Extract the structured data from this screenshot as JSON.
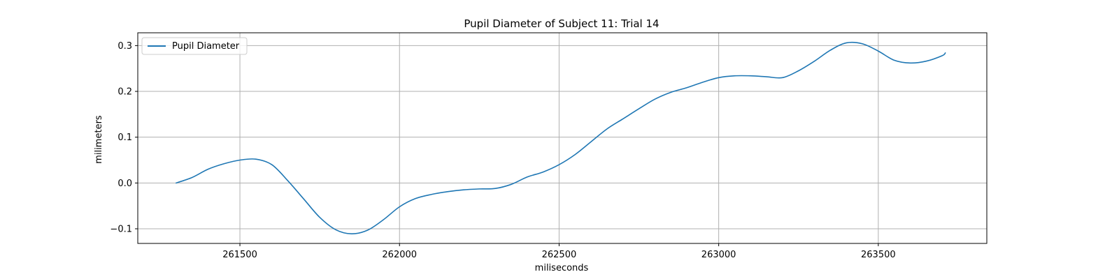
{
  "chart_data": {
    "type": "line",
    "title": "Pupil Diameter of Subject 11: Trial 14",
    "xlabel": "miliseconds",
    "ylabel": "milimeters",
    "xlim": [
      261180,
      263840
    ],
    "ylim": [
      -0.132,
      0.328
    ],
    "xticks": [
      261500,
      262000,
      262500,
      263000,
      263500
    ],
    "yticks": [
      -0.1,
      0.0,
      0.1,
      0.2,
      0.3
    ],
    "ytick_labels": [
      "−0.1",
      "0.0",
      "0.1",
      "0.2",
      "0.3"
    ],
    "grid": true,
    "legend": {
      "placement": "upper-left",
      "entries": [
        "Pupil Diameter"
      ]
    },
    "colors": {
      "line": "#1f77b4",
      "grid": "#b0b0b0"
    },
    "series": [
      {
        "name": "Pupil Diameter",
        "x": [
          261300,
          261350,
          261400,
          261450,
          261500,
          261550,
          261600,
          261650,
          261700,
          261750,
          261800,
          261850,
          261900,
          261950,
          262000,
          262050,
          262100,
          262150,
          262200,
          262250,
          262300,
          262350,
          262400,
          262450,
          262500,
          262550,
          262600,
          262650,
          262700,
          262750,
          262800,
          262850,
          262900,
          262950,
          263000,
          263050,
          263100,
          263150,
          263200,
          263250,
          263300,
          263350,
          263400,
          263450,
          263500,
          263550,
          263600,
          263650,
          263700,
          263710
        ],
        "y": [
          0.0,
          0.012,
          0.03,
          0.042,
          0.05,
          0.052,
          0.04,
          0.005,
          -0.035,
          -0.075,
          -0.102,
          -0.111,
          -0.103,
          -0.08,
          -0.052,
          -0.034,
          -0.025,
          -0.019,
          -0.015,
          -0.013,
          -0.012,
          -0.003,
          0.013,
          0.024,
          0.04,
          0.062,
          0.09,
          0.118,
          0.14,
          0.162,
          0.183,
          0.198,
          0.208,
          0.22,
          0.23,
          0.234,
          0.234,
          0.232,
          0.23,
          0.245,
          0.266,
          0.29,
          0.306,
          0.304,
          0.288,
          0.268,
          0.262,
          0.266,
          0.278,
          0.284
        ]
      }
    ]
  }
}
